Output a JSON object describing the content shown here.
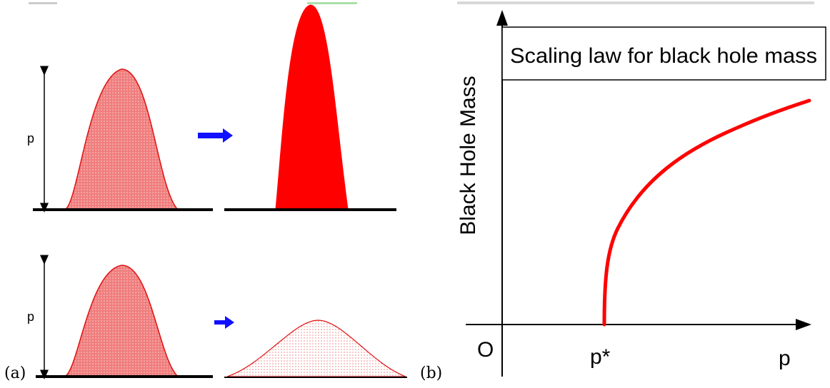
{
  "panel_a": {
    "label": "(a)",
    "top": {
      "axis_label": "p"
    },
    "bottom": {
      "axis_label": "p"
    }
  },
  "panel_b": {
    "label": "(b)",
    "title": "Scaling law for black hole mass",
    "y_axis_label": "Black Hole Mass",
    "origin_label": "O",
    "critical_tick_label": "p*",
    "x_axis_label": "p"
  },
  "colors": {
    "initial_fill": "#f08080",
    "collapsed_fill": "#ff0000",
    "dispersed_fill": "#fbe3e3",
    "outline": "#e01010",
    "arrow": "#1010ff",
    "axis": "#000000"
  }
}
